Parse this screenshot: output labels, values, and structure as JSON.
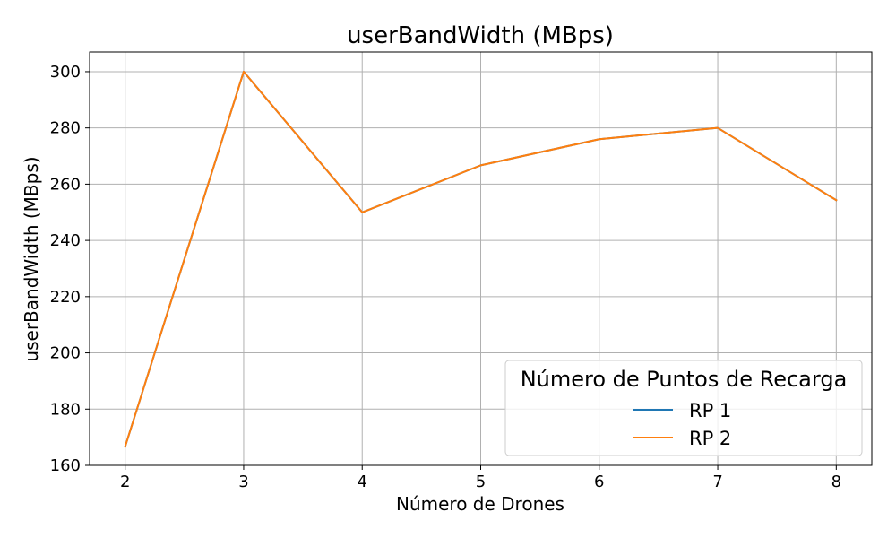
{
  "chart_data": {
    "type": "line",
    "title": "userBandWidth (MBps)",
    "xlabel": "Número de Drones",
    "ylabel": "userBandWidth (MBps)",
    "x": [
      2,
      3,
      4,
      5,
      6,
      7,
      8
    ],
    "xlim": [
      1.7,
      8.3
    ],
    "ylim": [
      160,
      307
    ],
    "xticks": [
      2,
      3,
      4,
      5,
      6,
      7,
      8
    ],
    "yticks": [
      160,
      180,
      200,
      220,
      240,
      260,
      280,
      300
    ],
    "grid": true,
    "legend": {
      "title": "Número de Puntos de Recarga",
      "placement": "lower-right"
    },
    "series": [
      {
        "name": "RP 1",
        "color": "#1f77b4",
        "values": [
          166.7,
          300,
          250,
          266.7,
          276,
          280,
          254.3
        ]
      },
      {
        "name": "RP 2",
        "color": "#ff7f0e",
        "values": [
          166.7,
          300,
          250,
          266.7,
          276,
          280,
          254.3
        ]
      }
    ]
  }
}
